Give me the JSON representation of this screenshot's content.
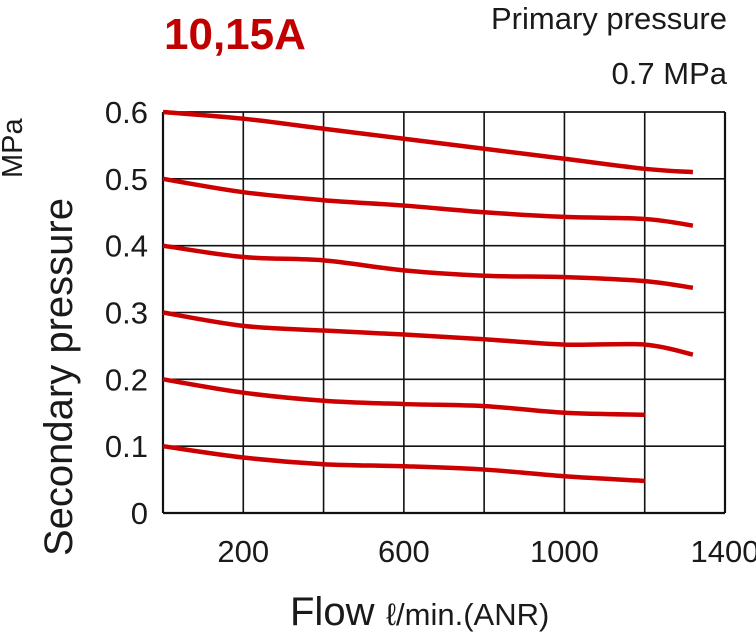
{
  "chart_data": {
    "type": "line",
    "title": "10,15A",
    "subtitle_line1": "Primary pressure",
    "subtitle_line2": "0.7 MPa",
    "xlabel": "Flow",
    "xunit": "ℓ/min.(ANR)",
    "ylabel": "Secondary pressure",
    "yunit": "MPa",
    "xlim": [
      0,
      1400
    ],
    "ylim": [
      0,
      0.6
    ],
    "x_ticks": [
      200,
      600,
      1000,
      1400
    ],
    "x_gridlines": [
      0,
      200,
      400,
      600,
      800,
      1000,
      1200,
      1400
    ],
    "y_ticks": [
      {
        "value": 0,
        "label": "0"
      },
      {
        "value": 0.1,
        "label": "0.1"
      },
      {
        "value": 0.2,
        "label": "0.2"
      },
      {
        "value": 0.3,
        "label": "0.3"
      },
      {
        "value": 0.4,
        "label": "0.4"
      },
      {
        "value": 0.5,
        "label": "0.5"
      },
      {
        "value": 0.6,
        "label": "0.6"
      }
    ],
    "grid": true,
    "line_color": "#cc0000",
    "series": [
      {
        "x": [
          0,
          200,
          400,
          600,
          800,
          1000,
          1200,
          1320
        ],
        "y": [
          0.6,
          0.59,
          0.575,
          0.56,
          0.545,
          0.53,
          0.515,
          0.51
        ]
      },
      {
        "x": [
          0,
          200,
          400,
          600,
          800,
          1000,
          1200,
          1320
        ],
        "y": [
          0.5,
          0.48,
          0.468,
          0.46,
          0.45,
          0.443,
          0.44,
          0.43
        ]
      },
      {
        "x": [
          0,
          200,
          400,
          600,
          800,
          1000,
          1200,
          1320
        ],
        "y": [
          0.4,
          0.383,
          0.378,
          0.363,
          0.355,
          0.353,
          0.347,
          0.337
        ]
      },
      {
        "x": [
          0,
          200,
          400,
          600,
          800,
          1000,
          1200,
          1320
        ],
        "y": [
          0.3,
          0.28,
          0.273,
          0.267,
          0.26,
          0.252,
          0.252,
          0.237
        ]
      },
      {
        "x": [
          0,
          200,
          400,
          600,
          800,
          1000,
          1200
        ],
        "y": [
          0.2,
          0.18,
          0.168,
          0.163,
          0.16,
          0.15,
          0.147
        ]
      },
      {
        "x": [
          0,
          200,
          400,
          600,
          800,
          1000,
          1200
        ],
        "y": [
          0.1,
          0.083,
          0.073,
          0.07,
          0.065,
          0.055,
          0.048
        ]
      }
    ]
  }
}
